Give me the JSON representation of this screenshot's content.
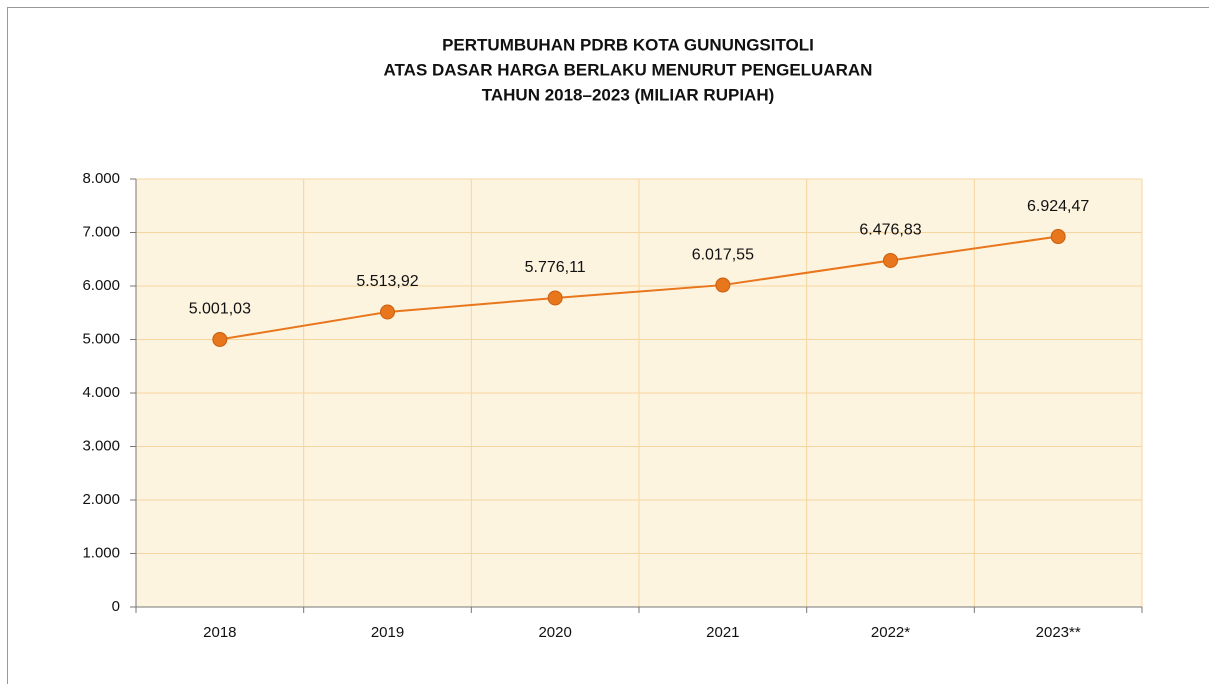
{
  "chart_data": {
    "type": "line",
    "title": [
      "PERTUMBUHAN PDRB  KOTA GUNUNGSITOLI",
      "ATAS DASAR HARGA BERLAKU MENURUT PENGELUARAN",
      "TAHUN 2018–2023 (MILIAR RUPIAH)"
    ],
    "categories": [
      "2018",
      "2019",
      "2020",
      "2021",
      "2022*",
      "2023**"
    ],
    "series": [
      {
        "color": "#e8761c",
        "values": [
          5001.03,
          5513.92,
          5776.11,
          6017.55,
          6476.83,
          6924.47
        ],
        "value_labels": [
          "5.001,03",
          "5.513,92",
          "5.776,11",
          "6.017,55",
          "6.476,83",
          "6.924,47"
        ]
      }
    ],
    "ylim": [
      0,
      8000
    ],
    "yticks": [
      0,
      {
        "value": 1000,
        "label": "1.000"
      },
      {
        "value": 2000,
        "label": "2.000"
      },
      {
        "value": 3000,
        "label": "3.000"
      },
      {
        "value": 4000,
        "label": "4.000"
      },
      {
        "value": 5000,
        "label": "5.000"
      },
      {
        "value": 6000,
        "label": "6.000"
      },
      {
        "value": 7000,
        "label": "7.000"
      },
      {
        "value": 8000,
        "label": "8.000"
      }
    ],
    "grid": true
  }
}
